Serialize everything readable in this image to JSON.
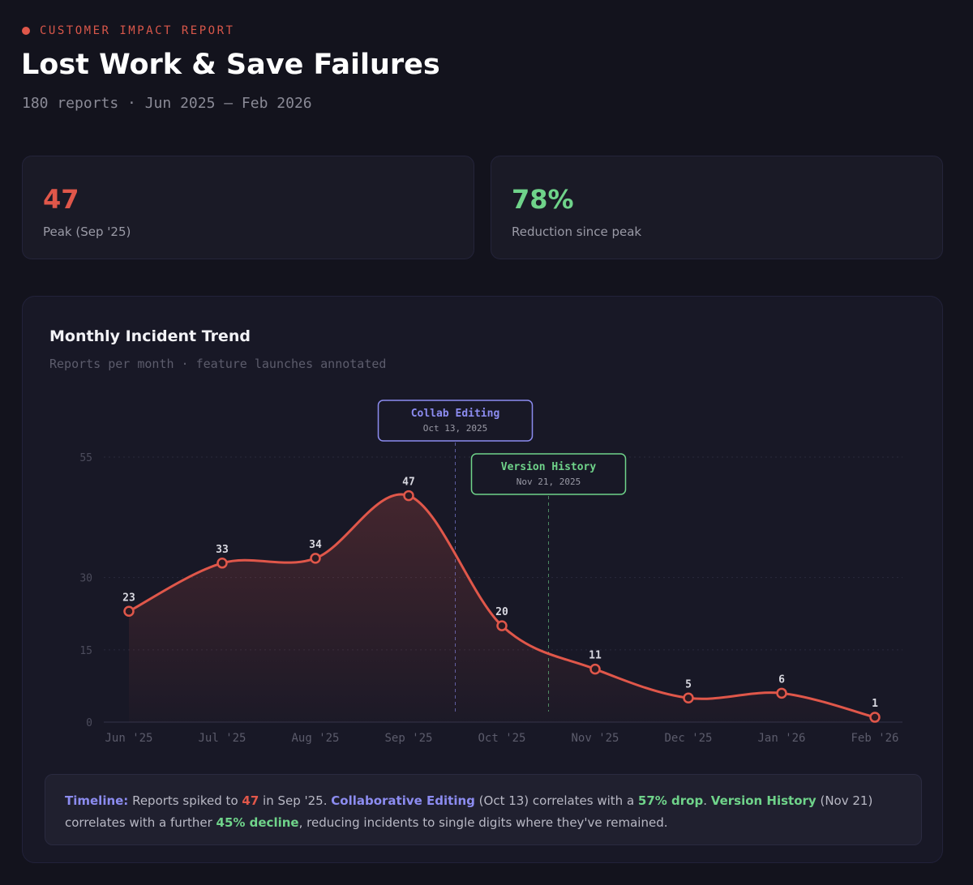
{
  "header": {
    "eyebrow": "CUSTOMER IMPACT REPORT",
    "title": "Lost Work & Save Failures",
    "subtitle": "180 reports · Jun 2025 – Feb 2026"
  },
  "stats": [
    {
      "value": "47",
      "label": "Peak (Sep '25)",
      "color": "#e0574a"
    },
    {
      "value": "78%",
      "label": "Reduction since peak",
      "color": "#6fd38a"
    }
  ],
  "chart_data": {
    "type": "line",
    "title": "Monthly Incident Trend",
    "subtitle": "Reports per month · feature launches annotated",
    "categories": [
      "Jun '25",
      "Jul '25",
      "Aug '25",
      "Sep '25",
      "Oct '25",
      "Nov '25",
      "Dec '25",
      "Jan '26",
      "Feb '26"
    ],
    "values": [
      23,
      33,
      34,
      47,
      20,
      11,
      5,
      6,
      1
    ],
    "yticks": [
      0,
      15,
      30,
      55
    ],
    "ylim": [
      0,
      55
    ],
    "grid": true,
    "line_color": "#e0574a",
    "annotations": [
      {
        "label": "Collab Editing",
        "date": "Oct 13, 2025",
        "position": 3.5,
        "color": "#8c8cf0"
      },
      {
        "label": "Version History",
        "date": "Nov 21, 2025",
        "position": 4.5,
        "color": "#6fd38a"
      }
    ]
  },
  "note": {
    "p1": "Timeline:",
    "p2": " Reports spiked to ",
    "p3": "47",
    "p4": " in Sep '25. ",
    "p5": "Collaborative Editing",
    "p6": " (Oct 13) correlates with a ",
    "p7": "57% drop",
    "p8": ". ",
    "p9": "Version History",
    "p10": " (Nov 21) correlates with a further ",
    "p11": "45% decline",
    "p12": ", reducing incidents to single digits where they've remained."
  }
}
